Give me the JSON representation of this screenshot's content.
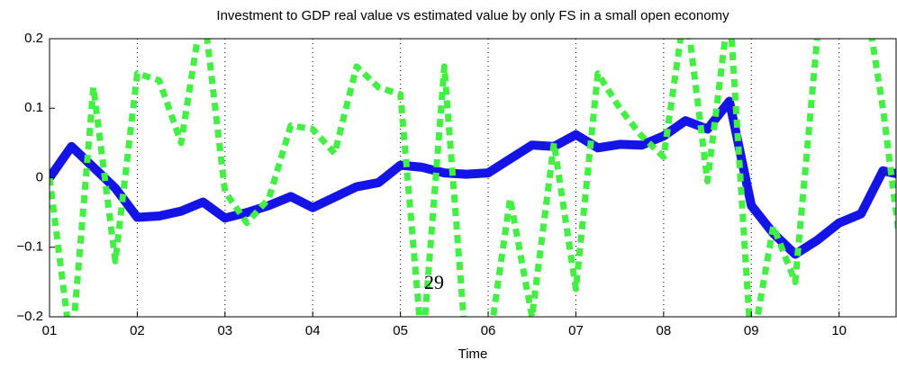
{
  "chart_data": {
    "type": "line",
    "title": "Investment to GDP real value vs estimated value by only FS in a small open economy",
    "x_label": "Time",
    "annotation": "29",
    "x": [
      1,
      1.25,
      1.5,
      1.75,
      2,
      2.25,
      2.5,
      2.75,
      3,
      3.25,
      3.5,
      3.75,
      4,
      4.25,
      4.5,
      4.75,
      5,
      5.25,
      5.5,
      5.75,
      6,
      6.25,
      6.5,
      6.75,
      7,
      7.25,
      7.5,
      7.75,
      8,
      8.25,
      8.5,
      8.75,
      9,
      9.25,
      9.5,
      9.75,
      10,
      10.25,
      10.5,
      10.75
    ],
    "series": [
      {
        "color": "#1414e6",
        "style": "solid",
        "values": [
          0.0,
          0.045,
          0.015,
          -0.015,
          -0.057,
          -0.055,
          -0.048,
          -0.035,
          -0.058,
          -0.05,
          -0.04,
          -0.027,
          -0.043,
          -0.028,
          -0.013,
          -0.007,
          0.018,
          0.015,
          0.007,
          0.005,
          0.007,
          0.027,
          0.047,
          0.045,
          0.062,
          0.043,
          0.048,
          0.047,
          0.06,
          0.082,
          0.07,
          0.11,
          -0.04,
          -0.08,
          -0.11,
          -0.09,
          -0.065,
          -0.052,
          0.01,
          0.003
        ]
      },
      {
        "color": "#44ee44",
        "style": "dotted",
        "values": [
          0.0,
          -0.25,
          0.13,
          -0.12,
          0.15,
          0.14,
          0.05,
          0.25,
          -0.02,
          -0.065,
          -0.03,
          0.075,
          0.07,
          0.035,
          0.16,
          0.13,
          0.12,
          -0.25,
          0.16,
          -0.25,
          -0.25,
          -0.03,
          -0.2,
          0.05,
          -0.16,
          0.15,
          0.1,
          0.06,
          0.03,
          0.25,
          -0.005,
          0.25,
          -0.25,
          -0.07,
          -0.15,
          0.2,
          0.3,
          0.3,
          0.1,
          -0.15
        ]
      }
    ],
    "xlim": [
      1,
      10.65
    ],
    "ylim": [
      -0.2,
      0.2
    ],
    "xticks": [
      {
        "value": 1,
        "label": "01"
      },
      {
        "value": 2,
        "label": "02"
      },
      {
        "value": 3,
        "label": "03"
      },
      {
        "value": 4,
        "label": "04"
      },
      {
        "value": 5,
        "label": "05"
      },
      {
        "value": 6,
        "label": "06"
      },
      {
        "value": 7,
        "label": "07"
      },
      {
        "value": 8,
        "label": "08"
      },
      {
        "value": 9,
        "label": "09"
      },
      {
        "value": 10,
        "label": "10"
      }
    ],
    "yticks": [
      {
        "value": -0.2,
        "label": "−0.2"
      },
      {
        "value": -0.1,
        "label": "−0.1"
      },
      0,
      0.1,
      0.2
    ],
    "grid": "x"
  }
}
